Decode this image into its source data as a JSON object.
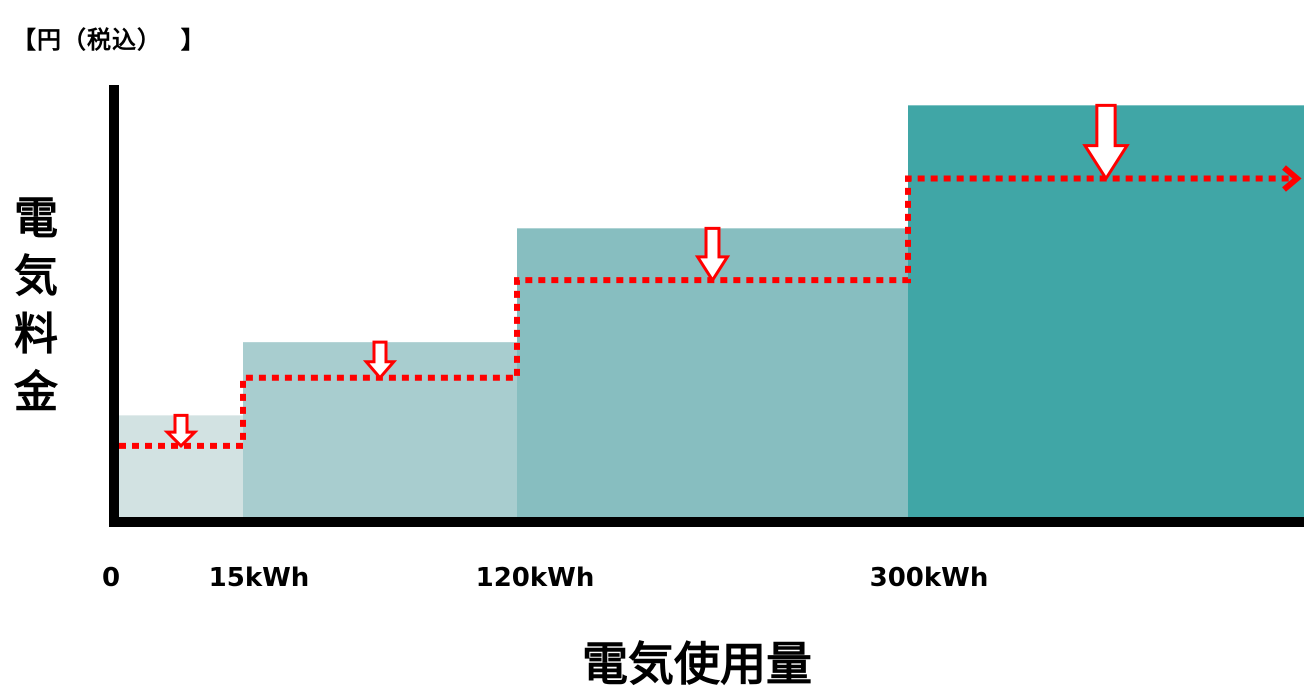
{
  "chart_data": {
    "type": "bar",
    "unit_label": "【円（税込）  】",
    "ylabel": "電気料金",
    "xlabel": "電気使用量",
    "x_ticks": [
      "0",
      "15kWh",
      "120kWh",
      "300kWh"
    ],
    "tiers": [
      {
        "start": 0,
        "end": 15,
        "color": "#d2e2e2"
      },
      {
        "start": 15,
        "end": 120,
        "color": "#a8cdcf"
      },
      {
        "start": 120,
        "end": 300,
        "color": "#87bec0"
      },
      {
        "start": 300,
        "end": null,
        "color": "#40a6a6"
      }
    ],
    "series": [
      {
        "values": [
          100,
          172,
          284,
          405
        ]
      },
      {
        "values": [
          70,
          137,
          233,
          333
        ]
      }
    ],
    "ylim": [
      0,
      425
    ],
    "colors": {
      "axis": "#000000",
      "line": "#ff0000",
      "arrow_fill": "#ffffff",
      "arrow_stroke": "#ff0000"
    }
  }
}
